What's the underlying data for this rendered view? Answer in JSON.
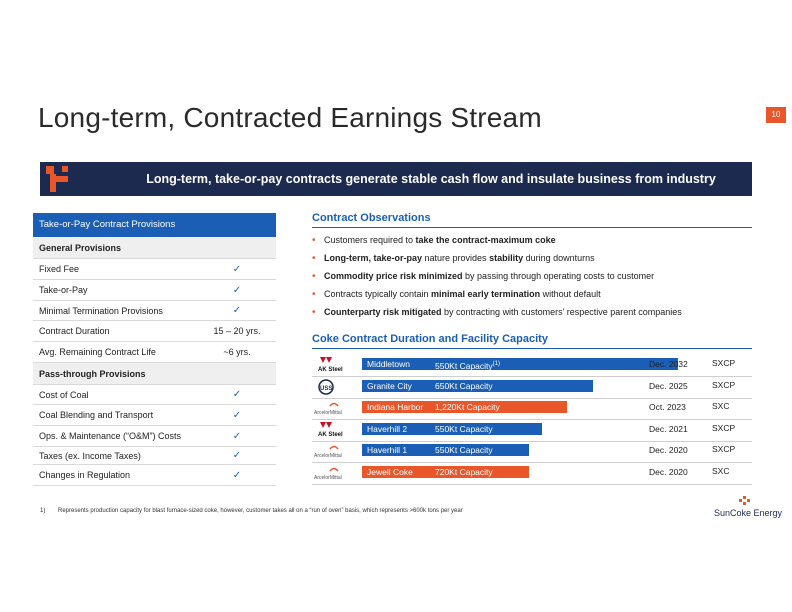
{
  "page": {
    "title": "Long-term, Contracted Earnings Stream",
    "number": "10"
  },
  "banner": {
    "text": "Long-term, take-or-pay contracts generate stable cash flow and insulate business from industry cyclicality"
  },
  "table": {
    "header": "Take-or-Pay Contract Provisions",
    "rows": [
      {
        "label": "General Provisions",
        "value": "",
        "section": true
      },
      {
        "label": "Fixed Fee",
        "value": "✓"
      },
      {
        "label": "Take-or-Pay",
        "value": "✓"
      },
      {
        "label": "Minimal Termination Provisions",
        "value": "✓"
      },
      {
        "label": "Contract Duration",
        "value": "15 – 20 yrs."
      },
      {
        "label": "Avg. Remaining Contract Life",
        "value": "~6 yrs."
      },
      {
        "label": "Pass-through Provisions",
        "value": "",
        "section": true
      },
      {
        "label": "Cost of Coal",
        "value": "✓"
      },
      {
        "label": "Coal Blending and Transport",
        "value": "✓"
      },
      {
        "label": "Ops. & Maintenance (“O&M”) Costs",
        "value": "✓"
      },
      {
        "label": "Taxes (ex. Income Taxes)",
        "value": "✓"
      },
      {
        "label": "Changes in Regulation",
        "value": "✓"
      }
    ]
  },
  "observations": {
    "title": "Contract Observations",
    "items": [
      {
        "pre": "Customers required to ",
        "bold": "take the contract-maximum coke",
        "post": ""
      },
      {
        "pre": "",
        "bold": "Long-term, take-or-pay",
        "post": " nature provides ",
        "bold2": "stability",
        "post2": " during downturns"
      },
      {
        "pre": "",
        "bold": "Commodity price risk minimized",
        "post": " by passing through operating costs to customer"
      },
      {
        "pre": "Contracts typically contain ",
        "bold": "minimal early termination",
        "post": " without default"
      },
      {
        "pre": "",
        "bold": "Counterparty risk mitigated",
        "post": " by contracting with customers’ respective parent companies"
      }
    ]
  },
  "facilities": {
    "title": "Coke Contract Duration and Facility Capacity",
    "rows": [
      {
        "customer": "AK Steel",
        "plant": "Middletown",
        "capacity": "550Kt Capacity",
        "footnote": "(1)",
        "end": "Dec. 2032",
        "entity": "SXCP",
        "color": "#1a5fb5",
        "bar_fraction": 1.0
      },
      {
        "customer": "USS",
        "plant": "Granite City",
        "capacity": "650Kt Capacity",
        "footnote": "",
        "end": "Dec. 2025",
        "entity": "SXCP",
        "color": "#1a5fb5",
        "bar_fraction": 0.73
      },
      {
        "customer": "ArcelorMittal",
        "plant": "Indiana Harbor",
        "capacity": "1,220Kt Capacity",
        "footnote": "",
        "end": "Oct. 2023",
        "entity": "SXC",
        "color": "#e8562a",
        "bar_fraction": 0.65
      },
      {
        "customer": "AK Steel",
        "plant": "Haverhill 2",
        "capacity": "550Kt Capacity",
        "footnote": "",
        "end": "Dec. 2021",
        "entity": "SXCP",
        "color": "#1a5fb5",
        "bar_fraction": 0.57
      },
      {
        "customer": "ArcelorMittal",
        "plant": "Haverhill 1",
        "capacity": "550Kt Capacity",
        "footnote": "",
        "end": "Dec. 2020",
        "entity": "SXCP",
        "color": "#1a5fb5",
        "bar_fraction": 0.53
      },
      {
        "customer": "ArcelorMittal",
        "plant": "Jewell Coke",
        "capacity": "720Kt Capacity",
        "footnote": "",
        "end": "Dec. 2020",
        "entity": "SXC",
        "color": "#e8562a",
        "bar_fraction": 0.53
      }
    ]
  },
  "footnote": {
    "number": "1)",
    "text": "Represents production capacity for blast furnace-sized coke, however, customer takes all on a “run of oven” basis, which represents >600k tons per year"
  },
  "brand": {
    "name": "SunCoke Energy"
  }
}
